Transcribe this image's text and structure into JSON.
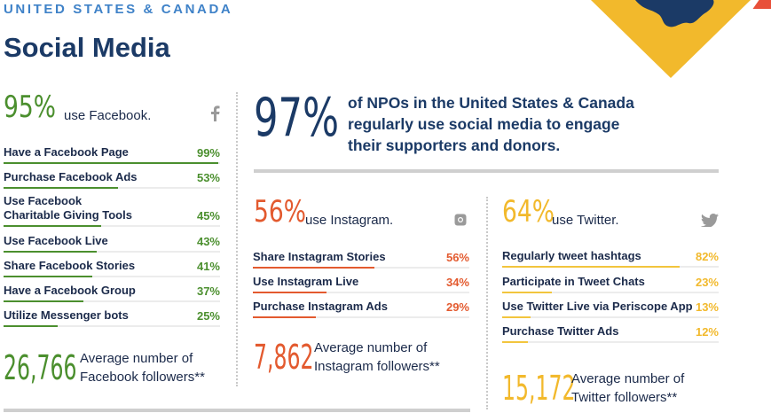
{
  "header": {
    "region": "UNITED STATES & CANADA",
    "title": "Social Media"
  },
  "colors": {
    "facebook": "#4b8f2e",
    "instagram": "#e35a2f",
    "twitter": "#f2b92c",
    "navy": "#1b3a66",
    "map_bg": "#f2b92c"
  },
  "headline": {
    "value": "97%",
    "line1": "of NPOs in the United States & Canada",
    "line2": "regularly use social media to engage",
    "line3": "their supporters and donors."
  },
  "facebook": {
    "value": "95%",
    "caption": "use Facebook.",
    "icon": "facebook-icon",
    "rows": [
      {
        "label": "Have a Facebook Page",
        "pct": "99%",
        "level": 0.99
      },
      {
        "label": "Purchase Facebook Ads",
        "pct": "53%",
        "level": 0.53
      },
      {
        "label": "Use Facebook",
        "label2": "Charitable Giving Tools",
        "pct": "45%",
        "level": 0.45
      },
      {
        "label": "Use Facebook Live",
        "pct": "43%",
        "level": 0.43
      },
      {
        "label": "Share Facebook Stories",
        "pct": "41%",
        "level": 0.41
      },
      {
        "label": "Have a Facebook Group",
        "pct": "37%",
        "level": 0.37
      },
      {
        "label": "Utilize Messenger bots",
        "pct": "25%",
        "level": 0.25
      }
    ],
    "followers_value": "26,766",
    "followers_caption1": "Average number of",
    "followers_caption2": "Facebook followers**"
  },
  "instagram": {
    "value": "56%",
    "caption": "use Instagram.",
    "icon": "instagram-icon",
    "rows": [
      {
        "label": "Share Instagram Stories",
        "pct": "56%",
        "level": 0.56
      },
      {
        "label": "Use Instagram Live",
        "pct": "34%",
        "level": 0.34
      },
      {
        "label": "Purchase Instagram Ads",
        "pct": "29%",
        "level": 0.29
      }
    ],
    "followers_value": "7,862",
    "followers_caption1": "Average number of",
    "followers_caption2": "Instagram followers**"
  },
  "twitter": {
    "value": "64%",
    "caption": "use Twitter.",
    "icon": "twitter-bird-icon",
    "rows": [
      {
        "label": "Regularly tweet hashtags",
        "pct": "82%",
        "level": 0.82
      },
      {
        "label": "Participate in Tweet Chats",
        "pct": "23%",
        "level": 0.23
      },
      {
        "label": "Use Twitter Live via Periscope App",
        "pct": "13%",
        "level": 0.13
      },
      {
        "label": "Purchase Twitter Ads",
        "pct": "12%",
        "level": 0.12
      }
    ],
    "followers_value": "15,172",
    "followers_caption1": "Average number of",
    "followers_caption2": "Twitter followers**"
  }
}
